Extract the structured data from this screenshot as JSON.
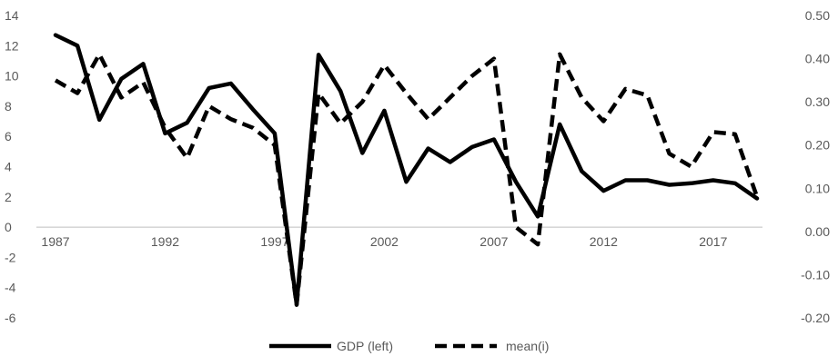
{
  "chart_data": {
    "type": "line",
    "x": [
      1987,
      1988,
      1989,
      1990,
      1991,
      1992,
      1993,
      1994,
      1995,
      1996,
      1997,
      1998,
      1999,
      2000,
      2001,
      2002,
      2003,
      2004,
      2005,
      2006,
      2007,
      2008,
      2009,
      2010,
      2011,
      2012,
      2013,
      2014,
      2015,
      2016,
      2017,
      2018,
      2019
    ],
    "x_tick_labels": [
      "1987",
      "1992",
      "1997",
      "2002",
      "2007",
      "2012",
      "2017"
    ],
    "y_left_ticks": [
      "14",
      "12",
      "10",
      "8",
      "6",
      "4",
      "2",
      "0",
      "-2",
      "-4",
      "-6"
    ],
    "y_right_ticks": [
      "0.50",
      "0.40",
      "0.30",
      "0.20",
      "0.10",
      "0.00",
      "-0.10",
      "-0.20"
    ],
    "ylim_left": [
      -6,
      14
    ],
    "ylim_right": [
      -0.2,
      0.5
    ],
    "series": [
      {
        "name": "GDP (left)",
        "axis": "left",
        "style": "solid",
        "color": "#000000",
        "values": [
          12.7,
          12.0,
          7.1,
          9.8,
          10.8,
          6.2,
          6.9,
          9.2,
          9.5,
          7.8,
          6.2,
          -5.1,
          11.4,
          9.0,
          4.9,
          7.7,
          3.0,
          5.2,
          4.3,
          5.3,
          5.8,
          3.0,
          0.7,
          6.8,
          3.7,
          2.4,
          3.1,
          3.1,
          2.8,
          2.9,
          3.1,
          2.9,
          1.9
        ]
      },
      {
        "name": "mean(i)",
        "axis": "right",
        "style": "dashed",
        "color": "#000000",
        "values": [
          0.35,
          0.32,
          0.41,
          0.31,
          0.345,
          0.24,
          0.17,
          0.29,
          0.26,
          0.24,
          0.2,
          -0.17,
          0.32,
          0.25,
          0.3,
          0.385,
          0.32,
          0.26,
          0.31,
          0.36,
          0.4,
          0.01,
          -0.03,
          0.41,
          0.31,
          0.255,
          0.33,
          0.315,
          0.18,
          0.15,
          0.23,
          0.225,
          0.08
        ]
      }
    ],
    "legend": {
      "placement": "bottom",
      "entries": [
        "GDP (left)",
        "mean(i)"
      ]
    },
    "grid": false
  }
}
